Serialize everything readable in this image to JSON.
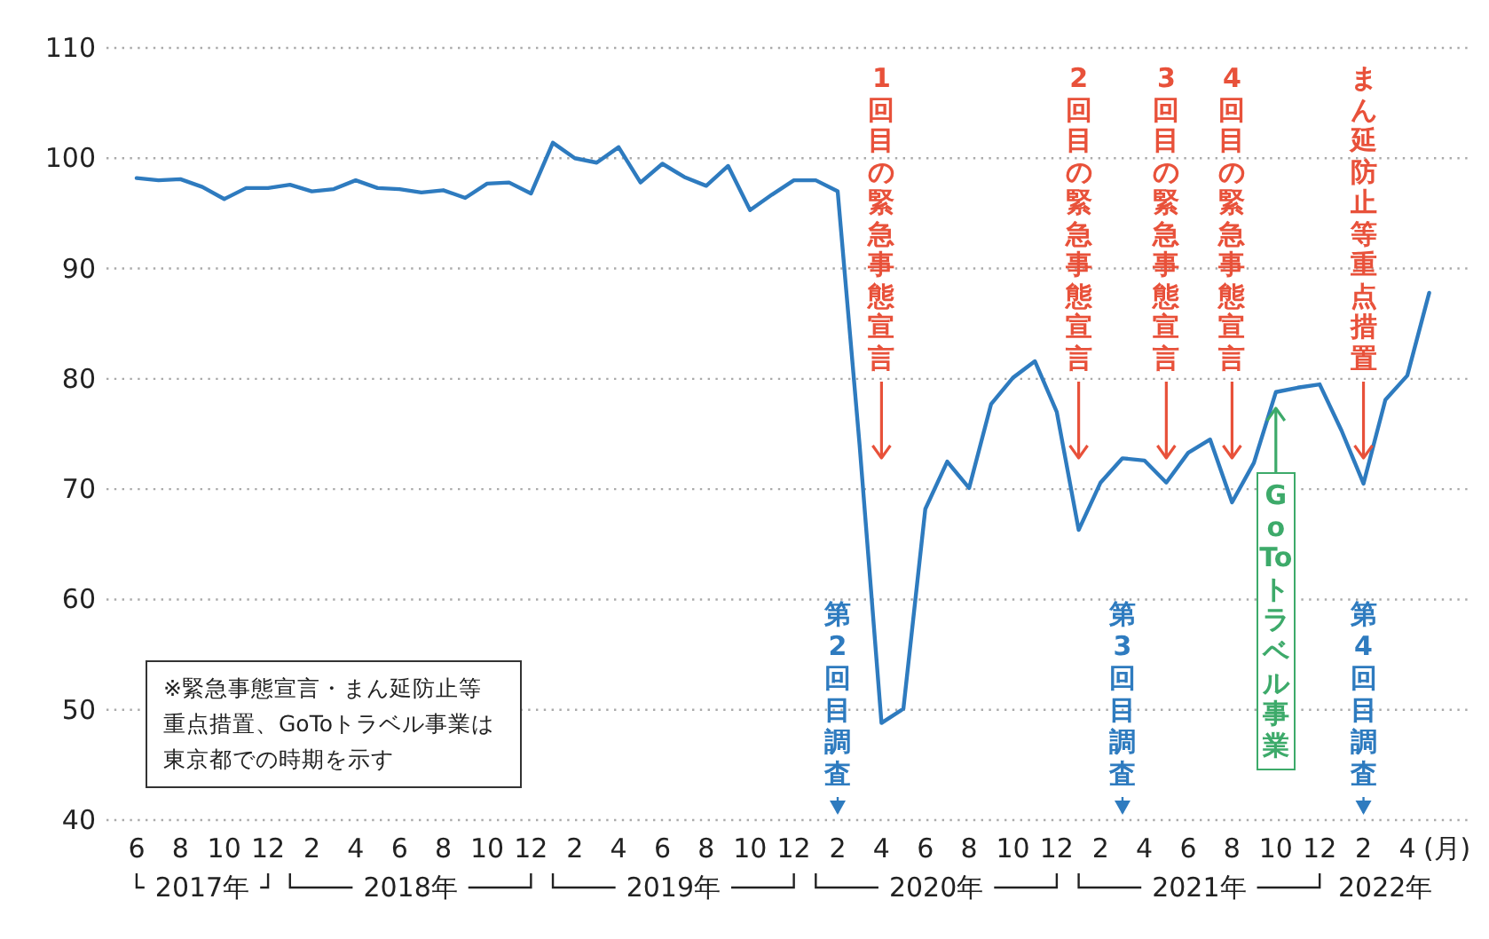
{
  "chart_data": {
    "type": "line",
    "xlabel": "(月)",
    "x": [
      "2017-06",
      "2017-07",
      "2017-08",
      "2017-09",
      "2017-10",
      "2017-11",
      "2017-12",
      "2018-01",
      "2018-02",
      "2018-03",
      "2018-04",
      "2018-05",
      "2018-06",
      "2018-07",
      "2018-08",
      "2018-09",
      "2018-10",
      "2018-11",
      "2018-12",
      "2019-01",
      "2019-02",
      "2019-03",
      "2019-04",
      "2019-05",
      "2019-06",
      "2019-07",
      "2019-08",
      "2019-09",
      "2019-10",
      "2019-11",
      "2019-12",
      "2020-01",
      "2020-02",
      "2020-03",
      "2020-04",
      "2020-05",
      "2020-06",
      "2020-07",
      "2020-08",
      "2020-09",
      "2020-10",
      "2020-11",
      "2020-12",
      "2021-01",
      "2021-02",
      "2021-03",
      "2021-04",
      "2021-05",
      "2021-06",
      "2021-07",
      "2021-08",
      "2021-09",
      "2021-10",
      "2021-11",
      "2021-12",
      "2022-01",
      "2022-02",
      "2022-03",
      "2022-04",
      "2022-05"
    ],
    "series": [
      {
        "color": "#2e7bbf",
        "values": [
          98.2,
          98.0,
          98.1,
          97.4,
          96.3,
          97.3,
          97.3,
          97.6,
          97.0,
          97.2,
          98.0,
          97.3,
          97.2,
          96.9,
          97.1,
          96.4,
          97.7,
          97.8,
          96.8,
          101.4,
          100.0,
          99.6,
          101.0,
          97.8,
          99.5,
          98.3,
          97.5,
          99.3,
          95.3,
          96.7,
          98.0,
          98.0,
          97.0,
          74,
          48.8,
          50.1,
          68.2,
          72.5,
          70.1,
          77.7,
          80.1,
          81.6,
          77.0,
          66.3,
          70.6,
          72.8,
          72.6,
          70.6,
          73.3,
          74.5,
          68.8,
          72.4,
          78.8,
          79.2,
          79.5,
          75.3,
          70.5,
          78.1,
          80.3,
          87.8
        ]
      }
    ],
    "xlim": [
      "2017-04-20",
      "2022-07-01"
    ],
    "ylim": [
      40,
      110
    ],
    "yticks": [
      40,
      50,
      60,
      70,
      80,
      90,
      100,
      110
    ],
    "xticks": [
      {
        "value": "2017-06",
        "label": "6"
      },
      {
        "value": "2017-08",
        "label": "8"
      },
      {
        "value": "2017-10",
        "label": "10"
      },
      {
        "value": "2017-12",
        "label": "12"
      },
      {
        "value": "2018-02",
        "label": "2"
      },
      {
        "value": "2018-04",
        "label": "4"
      },
      {
        "value": "2018-06",
        "label": "6"
      },
      {
        "value": "2018-08",
        "label": "8"
      },
      {
        "value": "2018-10",
        "label": "10"
      },
      {
        "value": "2018-12",
        "label": "12"
      },
      {
        "value": "2019-02",
        "label": "2"
      },
      {
        "value": "2019-04",
        "label": "4"
      },
      {
        "value": "2019-06",
        "label": "6"
      },
      {
        "value": "2019-08",
        "label": "8"
      },
      {
        "value": "2019-10",
        "label": "10"
      },
      {
        "value": "2019-12",
        "label": "12"
      },
      {
        "value": "2020-02",
        "label": "2"
      },
      {
        "value": "2020-04",
        "label": "4"
      },
      {
        "value": "2020-06",
        "label": "6"
      },
      {
        "value": "2020-08",
        "label": "8"
      },
      {
        "value": "2020-10",
        "label": "10"
      },
      {
        "value": "2020-12",
        "label": "12"
      },
      {
        "value": "2021-02",
        "label": "2"
      },
      {
        "value": "2021-04",
        "label": "4"
      },
      {
        "value": "2021-06",
        "label": "6"
      },
      {
        "value": "2021-08",
        "label": "8"
      },
      {
        "value": "2021-10",
        "label": "10"
      },
      {
        "value": "2021-12",
        "label": "12"
      },
      {
        "value": "2022-02",
        "label": "2"
      },
      {
        "value": "2022-04",
        "label": "4"
      }
    ],
    "grid": "y",
    "annotations": [
      "※緊急事態宣言・まん延防止等重点措置、GoToトラベル事業は東京都での時期を示す",
      "2017年",
      "2018年",
      "2019年",
      "2020年",
      "2021年",
      "2022年"
    ],
    "ref_lines": [
      {
        "axis": "x",
        "value": "2020-04",
        "label": "1回目の緊急事態宣言",
        "color": "#e8513a"
      },
      {
        "axis": "x",
        "value": "2021-01",
        "label": "2回目の緊急事態宣言",
        "color": "#e8513a"
      },
      {
        "axis": "x",
        "value": "2021-05",
        "label": "3回目の緊急事態宣言",
        "color": "#e8513a"
      },
      {
        "axis": "x",
        "value": "2021-08",
        "label": "4回目の緊急事態宣言",
        "color": "#e8513a"
      },
      {
        "axis": "x",
        "value": "2022-02",
        "label": "まん延防止等重点措置",
        "color": "#e8513a"
      },
      {
        "axis": "x",
        "value": "2021-10",
        "label": "GoToトラベル事業",
        "color": "#3daa6a"
      },
      {
        "axis": "x",
        "value": "2020-02",
        "label": "第2回目調査",
        "color": "#2e7bbf"
      },
      {
        "axis": "x",
        "value": "2021-03",
        "label": "第3回目調査",
        "color": "#2e7bbf"
      },
      {
        "axis": "x",
        "value": "2022-02",
        "label": "第4回目調査",
        "color": "#2e7bbf"
      }
    ]
  }
}
